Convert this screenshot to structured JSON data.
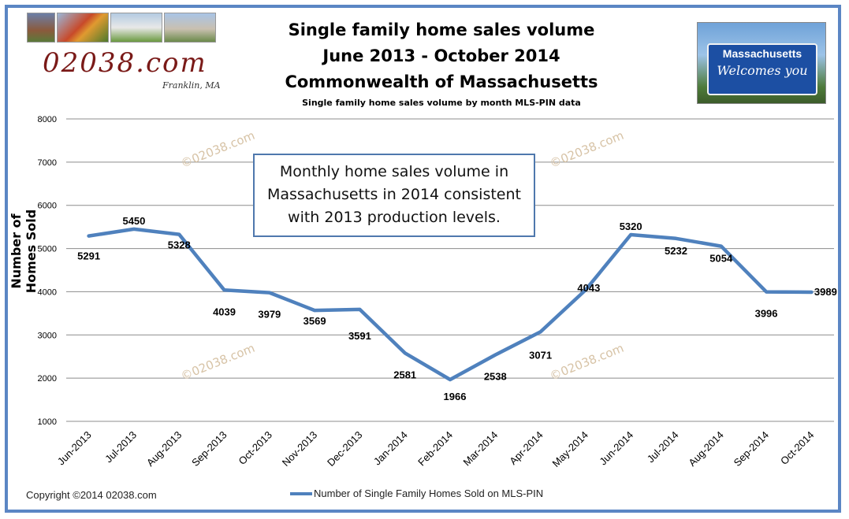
{
  "header": {
    "title_line1": "Single family home sales volume",
    "title_line2": "June 2013 - October 2014",
    "title_line3": "Commonwealth of Massachusetts",
    "subtitle": "Single family home sales volume by month MLS-PIN data"
  },
  "logo": {
    "text": "02038.com",
    "subtext": "Franklin, MA"
  },
  "sign": {
    "line1": "Massachusetts",
    "line2": "Welcomes you"
  },
  "callout": {
    "line1": "Monthly home sales volume in",
    "line2": "Massachusetts in 2014 consistent",
    "line3": "with 2013 production levels."
  },
  "watermark": "©02038.com",
  "copyright": "Copyright ©2014 02038.com",
  "chart_data": {
    "type": "line",
    "categories": [
      "Jun-2013",
      "Jul-2013",
      "Aug-2013",
      "Sep-2013",
      "Oct-2013",
      "Nov-2013",
      "Dec-2013",
      "Jan-2014",
      "Feb-2014",
      "Mar-2014",
      "Apr-2014",
      "May-2014",
      "Jun-2014",
      "Jul-2014",
      "Aug-2014",
      "Sep-2014",
      "Oct-2014"
    ],
    "series": [
      {
        "name": "Number of Single Family Homes Sold on MLS-PIN",
        "values": [
          5291,
          5450,
          5328,
          4039,
          3979,
          3569,
          3591,
          2581,
          1966,
          2538,
          3071,
          4043,
          5320,
          5232,
          5054,
          3996,
          3989
        ],
        "color": "#4f81bd"
      }
    ],
    "ylabel": "Number of Homes Sold",
    "ylim": [
      1000,
      8000
    ],
    "yticks": [
      1000,
      2000,
      3000,
      4000,
      5000,
      6000,
      7000,
      8000
    ],
    "grid": true,
    "legend": "bottom"
  }
}
